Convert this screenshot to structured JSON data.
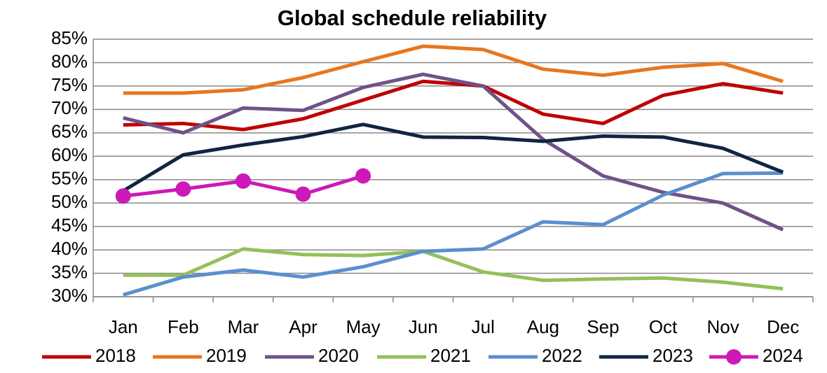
{
  "chart_data": {
    "type": "line",
    "title": "Global schedule reliability",
    "categories": [
      "Jan",
      "Feb",
      "Mar",
      "Apr",
      "May",
      "Jun",
      "Jul",
      "Aug",
      "Sep",
      "Oct",
      "Nov",
      "Dec"
    ],
    "ylim": [
      30,
      85
    ],
    "yticks": [
      {
        "value": 30,
        "label": "30%"
      },
      {
        "value": 35,
        "label": "35%"
      },
      {
        "value": 40,
        "label": "40%"
      },
      {
        "value": 45,
        "label": "45%"
      },
      {
        "value": 50,
        "label": "50%"
      },
      {
        "value": 55,
        "label": "55%"
      },
      {
        "value": 60,
        "label": "60%"
      },
      {
        "value": 65,
        "label": "65%"
      },
      {
        "value": 70,
        "label": "70%"
      },
      {
        "value": 75,
        "label": "75%"
      },
      {
        "value": 80,
        "label": "80%"
      },
      {
        "value": 85,
        "label": "85%"
      }
    ],
    "grid": true,
    "legend": "bottom",
    "series": [
      {
        "name": "2018",
        "color": "#c00000",
        "values": [
          66.7,
          67.0,
          65.7,
          68.0,
          72.0,
          76.0,
          75.0,
          69.0,
          67.0,
          73.0,
          75.5,
          73.5
        ]
      },
      {
        "name": "2019",
        "color": "#e8761e",
        "values": [
          73.5,
          73.5,
          74.2,
          76.8,
          80.2,
          83.5,
          82.8,
          78.6,
          77.3,
          79.0,
          79.8,
          76.0
        ]
      },
      {
        "name": "2020",
        "color": "#6e5289",
        "values": [
          68.2,
          65.0,
          70.3,
          69.8,
          74.7,
          77.5,
          75.0,
          63.6,
          55.8,
          52.3,
          50.0,
          44.3
        ]
      },
      {
        "name": "2021",
        "color": "#93c05a",
        "values": [
          34.6,
          34.6,
          40.2,
          39.0,
          38.8,
          39.7,
          35.3,
          33.5,
          33.8,
          34.0,
          33.1,
          31.7
        ]
      },
      {
        "name": "2022",
        "color": "#5b8fcf",
        "values": [
          30.4,
          34.2,
          35.7,
          34.2,
          36.4,
          39.7,
          40.2,
          46.0,
          45.4,
          51.7,
          56.3,
          56.4
        ]
      },
      {
        "name": "2023",
        "color": "#0f2540",
        "values": [
          52.6,
          60.3,
          62.4,
          64.2,
          66.8,
          64.1,
          64.0,
          63.2,
          64.3,
          64.1,
          61.7,
          56.6
        ]
      },
      {
        "name": "2024",
        "color": "#cc19b8",
        "marker": "circle",
        "values": [
          51.5,
          53.0,
          54.7,
          51.9,
          55.8,
          null,
          null,
          null,
          null,
          null,
          null,
          null
        ]
      }
    ]
  }
}
